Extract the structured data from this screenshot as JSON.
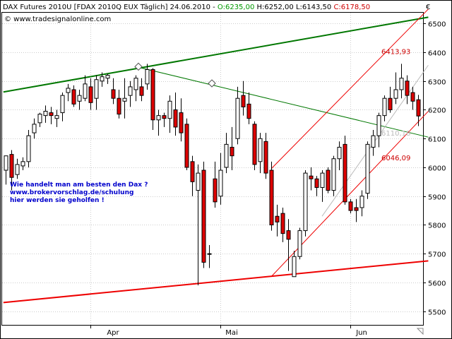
{
  "header": {
    "title": "DAX Futures 2010U [FDAX 2010Q EUX  Täglich] 24.06.2010 - ",
    "open": "O:6235,00",
    "high": "H:6252,00",
    "low": "L:6143,50",
    "close": "C:6178,50"
  },
  "watermark": "© www.tradesignalonline.com",
  "currency_symbol": "€",
  "note_lines": [
    "Wie handelt man am besten den Dax ?",
    "www.brokervorschlag.de/schulung",
    "hier werden sie geholfen !"
  ],
  "colors": {
    "up_candle": "#ffffff",
    "down_candle": "#dd0000",
    "green_line": "#007700",
    "red_line": "#ee0000",
    "note": "#0000cc",
    "annotation_red": "#cc0000",
    "annotation_gray": "#bbbbbb",
    "grid": "#cccccc"
  },
  "chart_data": {
    "type": "candlestick",
    "ylim": [
      5450,
      6540
    ],
    "yticks": [
      6500,
      6400,
      6300,
      6200,
      6100,
      6000,
      5900,
      5800,
      5700,
      5600,
      5500
    ],
    "ytick_labels": [
      "6500",
      "6400",
      "6300",
      "6200",
      "6100",
      "6000",
      "5900",
      "5800",
      "5700",
      "5600",
      "5500"
    ],
    "month_labels": [
      {
        "label": "Apr",
        "index": 19
      },
      {
        "label": "Mai",
        "index": 40
      },
      {
        "label": "Jun",
        "index": 63
      }
    ],
    "month_separators": [
      15,
      38,
      61
    ],
    "grid": true,
    "annotations": [
      {
        "text": "6413,93",
        "color": "red",
        "y": 6404
      },
      {
        "text": "6046,09",
        "color": "red",
        "y": 6034
      },
      {
        "text": "6110,18",
        "color": "gray",
        "y": 6120
      }
    ],
    "candles": [
      {
        "o": 5990,
        "h": 6040,
        "l": 5940,
        "c": 6040
      },
      {
        "o": 6045,
        "h": 6060,
        "l": 5920,
        "c": 5965
      },
      {
        "o": 5975,
        "h": 6030,
        "l": 5960,
        "c": 6010
      },
      {
        "o": 6005,
        "h": 6035,
        "l": 5990,
        "c": 6020
      },
      {
        "o": 6020,
        "h": 6130,
        "l": 6000,
        "c": 6110
      },
      {
        "o": 6120,
        "h": 6170,
        "l": 6100,
        "c": 6150
      },
      {
        "o": 6155,
        "h": 6190,
        "l": 6140,
        "c": 6185
      },
      {
        "o": 6180,
        "h": 6215,
        "l": 6155,
        "c": 6195
      },
      {
        "o": 6190,
        "h": 6210,
        "l": 6150,
        "c": 6180
      },
      {
        "o": 6170,
        "h": 6200,
        "l": 6140,
        "c": 6180
      },
      {
        "o": 6190,
        "h": 6260,
        "l": 6160,
        "c": 6250
      },
      {
        "o": 6260,
        "h": 6290,
        "l": 6230,
        "c": 6275
      },
      {
        "o": 6270,
        "h": 6285,
        "l": 6210,
        "c": 6220
      },
      {
        "o": 6230,
        "h": 6270,
        "l": 6200,
        "c": 6250
      },
      {
        "o": 6240,
        "h": 6320,
        "l": 6230,
        "c": 6290
      },
      {
        "o": 6280,
        "h": 6310,
        "l": 6200,
        "c": 6225
      },
      {
        "o": 6240,
        "h": 6320,
        "l": 6200,
        "c": 6305
      },
      {
        "o": 6300,
        "h": 6330,
        "l": 6280,
        "c": 6315
      },
      {
        "o": 6310,
        "h": 6325,
        "l": 6290,
        "c": 6320
      },
      {
        "o": 6270,
        "h": 6310,
        "l": 6220,
        "c": 6240
      },
      {
        "o": 6240,
        "h": 6270,
        "l": 6170,
        "c": 6185
      },
      {
        "o": 6230,
        "h": 6310,
        "l": 6170,
        "c": 6240
      },
      {
        "o": 6250,
        "h": 6300,
        "l": 6210,
        "c": 6280
      },
      {
        "o": 6270,
        "h": 6320,
        "l": 6230,
        "c": 6310
      },
      {
        "o": 6280,
        "h": 6310,
        "l": 6230,
        "c": 6250
      },
      {
        "o": 6290,
        "h": 6360,
        "l": 6270,
        "c": 6340
      },
      {
        "o": 6340,
        "h": 6345,
        "l": 6130,
        "c": 6165
      },
      {
        "o": 6165,
        "h": 6200,
        "l": 6110,
        "c": 6180
      },
      {
        "o": 6180,
        "h": 6190,
        "l": 6140,
        "c": 6170
      },
      {
        "o": 6170,
        "h": 6250,
        "l": 6120,
        "c": 6230
      },
      {
        "o": 6200,
        "h": 6260,
        "l": 6110,
        "c": 6140
      },
      {
        "o": 6190,
        "h": 6240,
        "l": 6090,
        "c": 6120
      },
      {
        "o": 6150,
        "h": 6170,
        "l": 5990,
        "c": 6000
      },
      {
        "o": 6020,
        "h": 6040,
        "l": 5900,
        "c": 5950
      },
      {
        "o": 5920,
        "h": 6010,
        "l": 5590,
        "c": 5980
      },
      {
        "o": 5990,
        "h": 6020,
        "l": 5650,
        "c": 5670
      },
      {
        "o": 5700,
        "h": 5730,
        "l": 5650,
        "c": 5700
      },
      {
        "o": 5960,
        "h": 6020,
        "l": 5860,
        "c": 5880
      },
      {
        "o": 5900,
        "h": 6050,
        "l": 5870,
        "c": 5990
      },
      {
        "o": 6000,
        "h": 6120,
        "l": 5980,
        "c": 6080
      },
      {
        "o": 6070,
        "h": 6140,
        "l": 5990,
        "c": 6040
      },
      {
        "o": 6100,
        "h": 6280,
        "l": 6080,
        "c": 6240
      },
      {
        "o": 6250,
        "h": 6300,
        "l": 6180,
        "c": 6210
      },
      {
        "o": 6220,
        "h": 6260,
        "l": 6150,
        "c": 6170
      },
      {
        "o": 6150,
        "h": 6160,
        "l": 5990,
        "c": 6010
      },
      {
        "o": 6020,
        "h": 6120,
        "l": 5980,
        "c": 6100
      },
      {
        "o": 6090,
        "h": 6120,
        "l": 5960,
        "c": 5980
      },
      {
        "o": 5990,
        "h": 6020,
        "l": 5780,
        "c": 5800
      },
      {
        "o": 5830,
        "h": 5870,
        "l": 5760,
        "c": 5810
      },
      {
        "o": 5840,
        "h": 5860,
        "l": 5740,
        "c": 5770
      },
      {
        "o": 5780,
        "h": 5820,
        "l": 5640,
        "c": 5750
      },
      {
        "o": 5620,
        "h": 5710,
        "l": 5620,
        "c": 5690
      },
      {
        "o": 5690,
        "h": 5790,
        "l": 5680,
        "c": 5780
      },
      {
        "o": 5780,
        "h": 5990,
        "l": 5760,
        "c": 5980
      },
      {
        "o": 5970,
        "h": 6000,
        "l": 5920,
        "c": 5960
      },
      {
        "o": 5960,
        "h": 5970,
        "l": 5900,
        "c": 5930
      },
      {
        "o": 5930,
        "h": 5990,
        "l": 5880,
        "c": 5980
      },
      {
        "o": 5990,
        "h": 6000,
        "l": 5910,
        "c": 5920
      },
      {
        "o": 5920,
        "h": 6040,
        "l": 5900,
        "c": 6030
      },
      {
        "o": 6030,
        "h": 6090,
        "l": 5990,
        "c": 6070
      },
      {
        "o": 6080,
        "h": 6110,
        "l": 5870,
        "c": 5880
      },
      {
        "o": 5880,
        "h": 5890,
        "l": 5840,
        "c": 5850
      },
      {
        "o": 5860,
        "h": 5890,
        "l": 5810,
        "c": 5850
      },
      {
        "o": 5860,
        "h": 5920,
        "l": 5830,
        "c": 5900
      },
      {
        "o": 5910,
        "h": 6090,
        "l": 5890,
        "c": 6080
      },
      {
        "o": 6070,
        "h": 6130,
        "l": 6040,
        "c": 6110
      },
      {
        "o": 6110,
        "h": 6190,
        "l": 6070,
        "c": 6180
      },
      {
        "o": 6180,
        "h": 6250,
        "l": 6160,
        "c": 6240
      },
      {
        "o": 6240,
        "h": 6280,
        "l": 6190,
        "c": 6200
      },
      {
        "o": 6240,
        "h": 6330,
        "l": 6220,
        "c": 6270
      },
      {
        "o": 6270,
        "h": 6360,
        "l": 6240,
        "c": 6310
      },
      {
        "o": 6300,
        "h": 6320,
        "l": 6220,
        "c": 6250
      },
      {
        "o": 6260,
        "h": 6280,
        "l": 6200,
        "c": 6230
      },
      {
        "o": 6235,
        "h": 6252,
        "l": 6143.5,
        "c": 6178.5
      }
    ],
    "trendlines": [
      {
        "name": "",
        "color": "green",
        "width": 2,
        "from": {
          "i": -0.4,
          "y": 6262
        },
        "to": {
          "i": 74.8,
          "y": 6522
        }
      },
      {
        "name": "",
        "color": "green",
        "width": 1,
        "from": {
          "i": 23.5,
          "y": 6348
        },
        "to": {
          "i": 74.8,
          "y": 6105
        }
      },
      {
        "name": "",
        "color": "red",
        "width": 2,
        "from": {
          "i": -0.4,
          "y": 5530
        },
        "to": {
          "i": 74.8,
          "y": 5675
        }
      },
      {
        "name": "",
        "color": "red",
        "width": 1,
        "from": {
          "i": 47,
          "y": 5620
        },
        "to": {
          "i": 74.8,
          "y": 6195
        }
      },
      {
        "name": "",
        "color": "red",
        "width": 1,
        "from": {
          "i": 47,
          "y": 5995
        },
        "to": {
          "i": 74.8,
          "y": 6550
        }
      },
      {
        "name": "",
        "color": "gray",
        "width": 1,
        "from": {
          "i": 56,
          "y": 5830
        },
        "to": {
          "i": 74.8,
          "y": 6355
        }
      }
    ],
    "markers": [
      {
        "shape": "diamond",
        "i": 23.5,
        "y": 6350
      },
      {
        "shape": "diamond",
        "i": 36.5,
        "y": 6292
      }
    ]
  }
}
